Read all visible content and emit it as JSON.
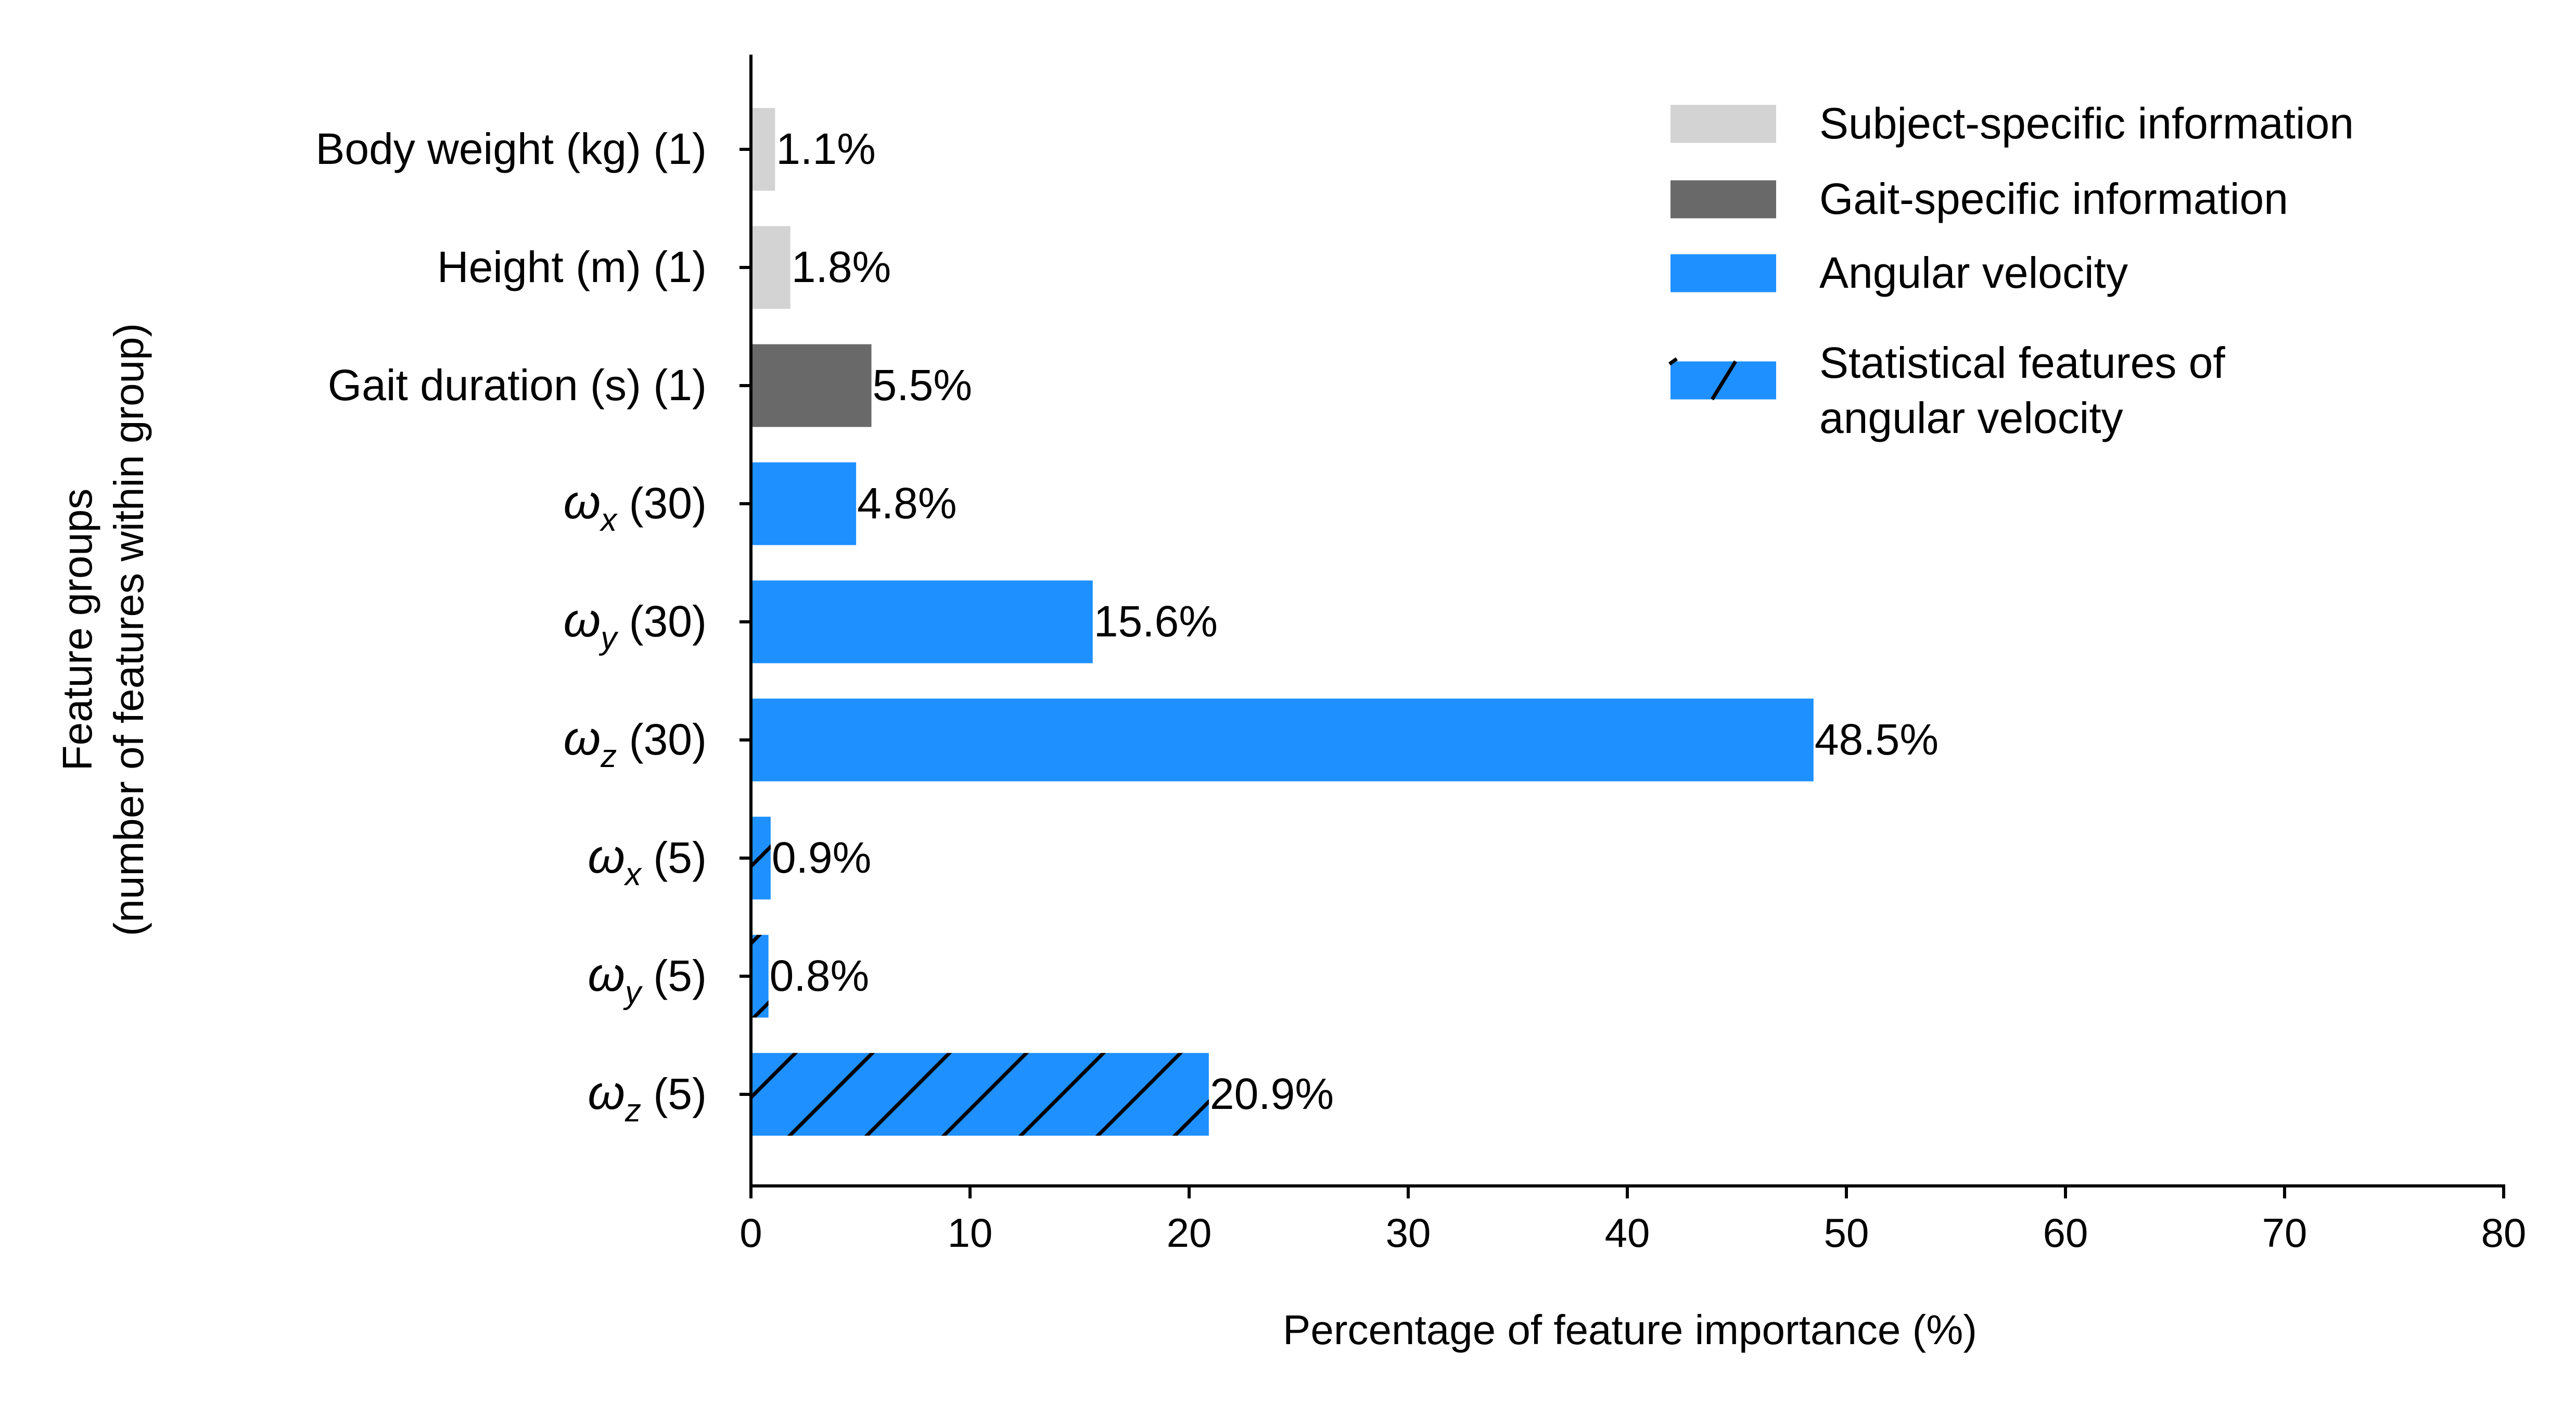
{
  "chart_data": {
    "type": "bar",
    "orientation": "horizontal",
    "xlabel": "Percentage of feature importance (%)",
    "ylabel_lines": [
      "Feature groups",
      "(number of features within group)"
    ],
    "xlim": [
      0,
      80
    ],
    "xticks": [
      "0",
      "10",
      "20",
      "30",
      "40",
      "50",
      "60",
      "70",
      "80"
    ],
    "grid": false,
    "legend_position": "top-right",
    "colors": {
      "subject": "#d3d3d3",
      "gait": "#696969",
      "angular": "#1e90ff",
      "hatch": "#000000"
    },
    "legend": [
      {
        "group": "subject",
        "lines": [
          "Subject-specific information"
        ],
        "hatch": false
      },
      {
        "group": "gait",
        "lines": [
          "Gait-specific information"
        ],
        "hatch": false
      },
      {
        "group": "angular",
        "lines": [
          "Angular velocity"
        ],
        "hatch": false
      },
      {
        "group": "angular",
        "lines": [
          "Statistical features of",
          "angular velocity"
        ],
        "hatch": true
      }
    ],
    "bars": [
      {
        "label": "Body weight (kg) (1)",
        "sym": "",
        "sub": "",
        "suffix": "",
        "value": 1.1,
        "value_label": "1.1%",
        "group": "subject",
        "hatch": false
      },
      {
        "label": "Height (m) (1)",
        "sym": "",
        "sub": "",
        "suffix": "",
        "value": 1.8,
        "value_label": "1.8%",
        "group": "subject",
        "hatch": false
      },
      {
        "label": "Gait duration (s) (1)",
        "sym": "",
        "sub": "",
        "suffix": "",
        "value": 5.5,
        "value_label": "5.5%",
        "group": "gait",
        "hatch": false
      },
      {
        "label": "",
        "sym": "ω",
        "sub": "x",
        "suffix": " (30)",
        "value": 4.8,
        "value_label": "4.8%",
        "group": "angular",
        "hatch": false
      },
      {
        "label": "",
        "sym": "ω",
        "sub": "y",
        "suffix": " (30)",
        "value": 15.6,
        "value_label": "15.6%",
        "group": "angular",
        "hatch": false
      },
      {
        "label": "",
        "sym": "ω",
        "sub": "z",
        "suffix": " (30)",
        "value": 48.5,
        "value_label": "48.5%",
        "group": "angular",
        "hatch": false
      },
      {
        "label": "",
        "sym": "ω",
        "sub": "x",
        "suffix": " (5)",
        "value": 0.9,
        "value_label": "0.9%",
        "group": "angular",
        "hatch": true
      },
      {
        "label": "",
        "sym": "ω",
        "sub": "y",
        "suffix": " (5)",
        "value": 0.8,
        "value_label": "0.8%",
        "group": "angular",
        "hatch": true
      },
      {
        "label": "",
        "sym": "ω",
        "sub": "z",
        "suffix": " (5)",
        "value": 20.9,
        "value_label": "20.9%",
        "group": "angular",
        "hatch": true
      }
    ]
  }
}
